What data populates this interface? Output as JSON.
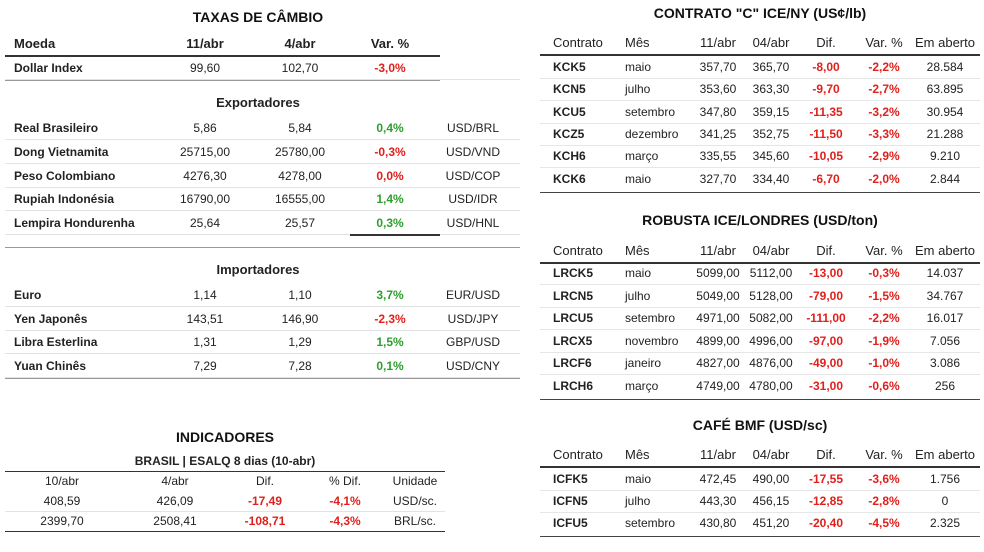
{
  "taxas": {
    "title": "TAXAS DE CÂMBIO",
    "headers": [
      "Moeda",
      "11/abr",
      "4/abr",
      "Var. %"
    ],
    "dollar": {
      "cells": [
        "Dollar Index",
        "99,60",
        "102,70",
        "-3,0%"
      ],
      "var_color": "#e0201c"
    },
    "exportadores": {
      "title": "Exportadores",
      "rows": [
        {
          "cells": [
            "Real Brasileiro",
            "5,86",
            "5,84",
            "0,4%",
            "USD/BRL"
          ],
          "var_color": "#2e9e2e"
        },
        {
          "cells": [
            "Dong Vietnamita",
            "25715,00",
            "25780,00",
            "-0,3%",
            "USD/VND"
          ],
          "var_color": "#e0201c"
        },
        {
          "cells": [
            "Peso Colombiano",
            "4276,30",
            "4278,00",
            "0,0%",
            "USD/COP"
          ],
          "var_color": "#e0201c"
        },
        {
          "cells": [
            "Rupiah Indonésia",
            "16790,00",
            "16555,00",
            "1,4%",
            "USD/IDR"
          ],
          "var_color": "#2e9e2e"
        },
        {
          "cells": [
            "Lempira Hondurenha",
            "25,64",
            "25,57",
            "0,3%",
            "USD/HNL"
          ],
          "var_color": "#2e9e2e"
        }
      ]
    },
    "importadores": {
      "title": "Importadores",
      "rows": [
        {
          "cells": [
            "Euro",
            "1,14",
            "1,10",
            "3,7%",
            "EUR/USD"
          ],
          "var_color": "#2e9e2e"
        },
        {
          "cells": [
            "Yen Japonês",
            "143,51",
            "146,90",
            "-2,3%",
            "USD/JPY"
          ],
          "var_color": "#e0201c"
        },
        {
          "cells": [
            "Libra Esterlina",
            "1,31",
            "1,29",
            "1,5%",
            "GBP/USD"
          ],
          "var_color": "#2e9e2e"
        },
        {
          "cells": [
            "Yuan Chinês",
            "7,29",
            "7,28",
            "0,1%",
            "USD/CNY"
          ],
          "var_color": "#2e9e2e"
        }
      ]
    }
  },
  "indicadores": {
    "title": "INDICADORES",
    "subtitle": "BRASIL | ESALQ 8 dias (10-abr)",
    "headers": [
      "10/abr",
      "4/abr",
      "Dif.",
      "% Dif.",
      "Unidade"
    ],
    "rows": [
      [
        "408,59",
        "426,09",
        "-17,49",
        "-4,1%",
        "USD/sc."
      ],
      [
        "2399,70",
        "2508,41",
        "-108,71",
        "-4,3%",
        "BRL/sc."
      ]
    ]
  },
  "contratos": [
    {
      "title": "CONTRATO \"C\" ICE/NY (US¢/lb)",
      "headers": [
        "Contrato",
        "Mês",
        "11/abr",
        "04/abr",
        "Dif.",
        "Var. %",
        "Em aberto"
      ],
      "rows": [
        [
          "KCK5",
          "maio",
          "357,70",
          "365,70",
          "-8,00",
          "-2,2%",
          "28.584"
        ],
        [
          "KCN5",
          "julho",
          "353,60",
          "363,30",
          "-9,70",
          "-2,7%",
          "63.895"
        ],
        [
          "KCU5",
          "setembro",
          "347,80",
          "359,15",
          "-11,35",
          "-3,2%",
          "30.954"
        ],
        [
          "KCZ5",
          "dezembro",
          "341,25",
          "352,75",
          "-11,50",
          "-3,3%",
          "21.288"
        ],
        [
          "KCH6",
          "março",
          "335,55",
          "345,60",
          "-10,05",
          "-2,9%",
          "9.210"
        ],
        [
          "KCK6",
          "maio",
          "327,70",
          "334,40",
          "-6,70",
          "-2,0%",
          "2.844"
        ]
      ]
    },
    {
      "title": "ROBUSTA ICE/LONDRES (USD/ton)",
      "headers": [
        "Contrato",
        "Mês",
        "11/abr",
        "04/abr",
        "Dif.",
        "Var. %",
        "Em aberto"
      ],
      "rows": [
        [
          "LRCK5",
          "maio",
          "5099,00",
          "5112,00",
          "-13,00",
          "-0,3%",
          "14.037"
        ],
        [
          "LRCN5",
          "julho",
          "5049,00",
          "5128,00",
          "-79,00",
          "-1,5%",
          "34.767"
        ],
        [
          "LRCU5",
          "setembro",
          "4971,00",
          "5082,00",
          "-111,00",
          "-2,2%",
          "16.017"
        ],
        [
          "LRCX5",
          "novembro",
          "4899,00",
          "4996,00",
          "-97,00",
          "-1,9%",
          "7.056"
        ],
        [
          "LRCF6",
          "janeiro",
          "4827,00",
          "4876,00",
          "-49,00",
          "-1,0%",
          "3.086"
        ],
        [
          "LRCH6",
          "março",
          "4749,00",
          "4780,00",
          "-31,00",
          "-0,6%",
          "256"
        ]
      ]
    },
    {
      "title": "CAFÉ BMF (USD/sc)",
      "headers": [
        "Contrato",
        "Mês",
        "11/abr",
        "04/abr",
        "Dif.",
        "Var. %",
        "Em aberto"
      ],
      "rows": [
        [
          "ICFK5",
          "maio",
          "472,45",
          "490,00",
          "-17,55",
          "-3,6%",
          "1.756"
        ],
        [
          "ICFN5",
          "julho",
          "443,30",
          "456,15",
          "-12,85",
          "-2,8%",
          "0"
        ],
        [
          "ICFU5",
          "setembro",
          "430,80",
          "451,20",
          "-20,40",
          "-4,5%",
          "2.325"
        ]
      ]
    }
  ]
}
